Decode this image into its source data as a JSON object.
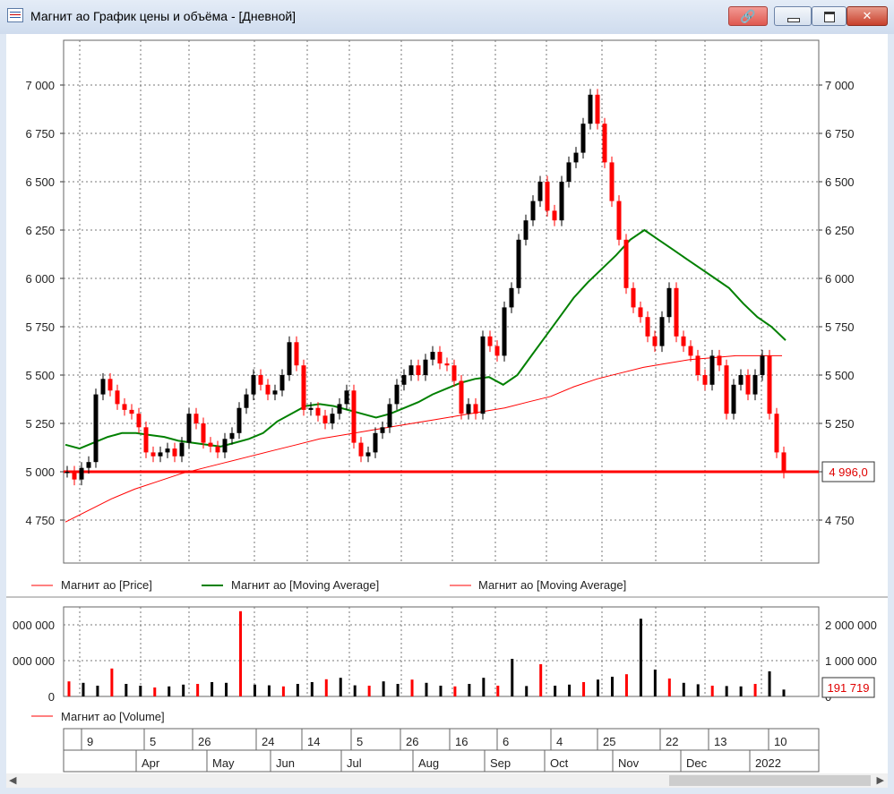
{
  "window": {
    "title": "Магнит ао График цены и объёма - [Дневной]",
    "buttons": {
      "link": "🔗",
      "close": "✕"
    }
  },
  "price_axis": {
    "ticks": [
      "7 000",
      "6 750",
      "6 500",
      "6 250",
      "6 000",
      "5 750",
      "5 500",
      "5 250",
      "5 000",
      "4 750"
    ],
    "tick_values": [
      7000,
      6750,
      6500,
      6250,
      6000,
      5750,
      5500,
      5250,
      5000,
      4750
    ],
    "current_value": "4 996,0",
    "current_price": 4996
  },
  "volume_axis": {
    "ticks_right": [
      "2 000 000",
      "1 000 000",
      "0"
    ],
    "ticks_left": [
      "000 000",
      "000 000",
      "0"
    ],
    "tick_values": [
      2000000,
      1000000,
      0
    ],
    "current_value": "191 719",
    "current_volume": 191719
  },
  "legend": {
    "price": "Магнит ао [Price]",
    "ma_green": "Магнит ао [Moving Average]",
    "ma_red": "Магнит ао [Moving Average]",
    "volume": "Магнит ао [Volume]"
  },
  "time_axis": {
    "days": [
      "9",
      "5",
      "26",
      "24",
      "14",
      "5",
      "26",
      "16",
      "6",
      "4",
      "25",
      "22",
      "13",
      "10"
    ],
    "months": [
      "Apr",
      "May",
      "Jun",
      "Jul",
      "Aug",
      "Sep",
      "Oct",
      "Nov",
      "Dec",
      "2022"
    ]
  },
  "colors": {
    "up_candle": "#000000",
    "down_candle": "#ff0000",
    "ma_green": "#008000",
    "ma_red": "#ff0000",
    "current_line": "#ff0000"
  },
  "chart_data": {
    "type": "line",
    "series": [
      {
        "name": "Магнит ао [Price]",
        "values": [
          5000,
          4960,
          5020,
          5050,
          5400,
          5480,
          5420,
          5350,
          5320,
          5300,
          5230,
          5100,
          5080,
          5100,
          5120,
          5080,
          5150,
          5300,
          5250,
          5150,
          5130,
          5100,
          5170,
          5200,
          5330,
          5400,
          5500,
          5450,
          5400,
          5420,
          5500,
          5670,
          5550,
          5320,
          5330,
          5290,
          5250,
          5300,
          5350,
          5420,
          5150,
          5080,
          5100,
          5200,
          5230,
          5350,
          5450,
          5500,
          5550,
          5500,
          5580,
          5620,
          5560,
          5550,
          5470,
          5300,
          5350,
          5300,
          5700,
          5650,
          5600,
          5850,
          5950,
          6200,
          6300,
          6400,
          6500,
          6350,
          6300,
          6500,
          6600,
          6650,
          6800,
          6950,
          6800,
          6600,
          6400,
          6200,
          5950,
          5850,
          5800,
          5700,
          5650,
          5800,
          5950,
          5700,
          5650,
          5600,
          5500,
          5450,
          5600,
          5550,
          5300,
          5450,
          5500,
          5400,
          5500,
          5600,
          5300,
          5100,
          4996
        ]
      },
      {
        "name": "Магнит ао [Moving Average]",
        "values": [
          5140,
          5120,
          5150,
          5180,
          5200,
          5200,
          5190,
          5180,
          5160,
          5150,
          5140,
          5130,
          5150,
          5170,
          5200,
          5260,
          5300,
          5340,
          5350,
          5340,
          5320,
          5300,
          5280,
          5300,
          5330,
          5360,
          5400,
          5430,
          5460,
          5480,
          5490,
          5450,
          5500,
          5600,
          5700,
          5800,
          5900,
          5980,
          6050,
          6120,
          6200,
          6250,
          6200,
          6150,
          6100,
          6050,
          6000,
          5950,
          5870,
          5800,
          5750,
          5680
        ]
      },
      {
        "name": "Магнит ао [Moving Average]",
        "values": [
          4740,
          4800,
          4860,
          4910,
          4950,
          4990,
          5020,
          5050,
          5080,
          5110,
          5140,
          5170,
          5190,
          5210,
          5230,
          5250,
          5270,
          5290,
          5310,
          5330,
          5360,
          5390,
          5440,
          5480,
          5510,
          5540,
          5560,
          5580,
          5590,
          5600,
          5600,
          5600
        ]
      },
      {
        "name": "Магнит ао [Volume]",
        "values": [
          420000,
          380000,
          300000,
          780000,
          350000,
          300000,
          250000,
          280000,
          330000,
          350000,
          400000,
          380000,
          2380000,
          330000,
          310000,
          280000,
          350000,
          400000,
          480000,
          520000,
          310000,
          300000,
          420000,
          350000,
          470000,
          380000,
          300000,
          280000,
          350000,
          520000,
          300000,
          1050000,
          290000,
          900000,
          300000,
          330000,
          400000,
          470000,
          550000,
          620000,
          2170000,
          750000,
          500000,
          380000,
          340000,
          300000,
          290000,
          280000,
          350000,
          700000,
          191719
        ]
      }
    ],
    "ylim": [
      4590,
      7250
    ],
    "volume_ylim": [
      0,
      2500000
    ]
  }
}
